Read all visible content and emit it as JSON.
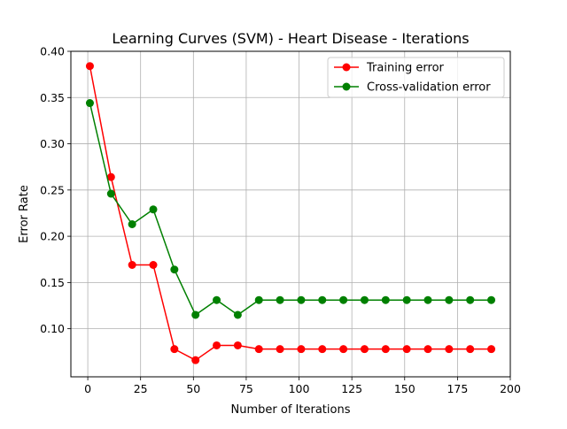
{
  "chart_data": {
    "type": "line",
    "title": "Learning Curves (SVM) - Heart Disease - Iterations",
    "xlabel": "Number of Iterations",
    "ylabel": "Error Rate",
    "xlim": [
      -8,
      200
    ],
    "ylim": [
      0.048,
      0.4
    ],
    "x_ticks": [
      0,
      25,
      50,
      75,
      100,
      125,
      150,
      175,
      200
    ],
    "y_ticks": [
      0.1,
      0.15,
      0.2,
      0.25,
      0.3,
      0.35,
      0.4
    ],
    "x_tick_labels": [
      "0",
      "25",
      "50",
      "75",
      "100",
      "125",
      "150",
      "175",
      "200"
    ],
    "y_tick_labels": [
      "0.10",
      "0.15",
      "0.20",
      "0.25",
      "0.30",
      "0.35",
      "0.40"
    ],
    "grid": true,
    "legend_position": "top-right",
    "x": [
      1,
      11,
      21,
      31,
      41,
      51,
      61,
      71,
      81,
      91,
      101,
      111,
      121,
      131,
      141,
      151,
      161,
      171,
      181,
      191
    ],
    "series": [
      {
        "name": "Training error",
        "color": "#ff0000",
        "marker": "circle",
        "values": [
          0.384,
          0.264,
          0.169,
          0.169,
          0.078,
          0.066,
          0.082,
          0.082,
          0.078,
          0.078,
          0.078,
          0.078,
          0.078,
          0.078,
          0.078,
          0.078,
          0.078,
          0.078,
          0.078,
          0.078
        ]
      },
      {
        "name": "Cross-validation error",
        "color": "#008000",
        "marker": "circle",
        "values": [
          0.344,
          0.246,
          0.213,
          0.229,
          0.164,
          0.115,
          0.131,
          0.115,
          0.131,
          0.131,
          0.131,
          0.131,
          0.131,
          0.131,
          0.131,
          0.131,
          0.131,
          0.131,
          0.131,
          0.131
        ]
      }
    ]
  }
}
